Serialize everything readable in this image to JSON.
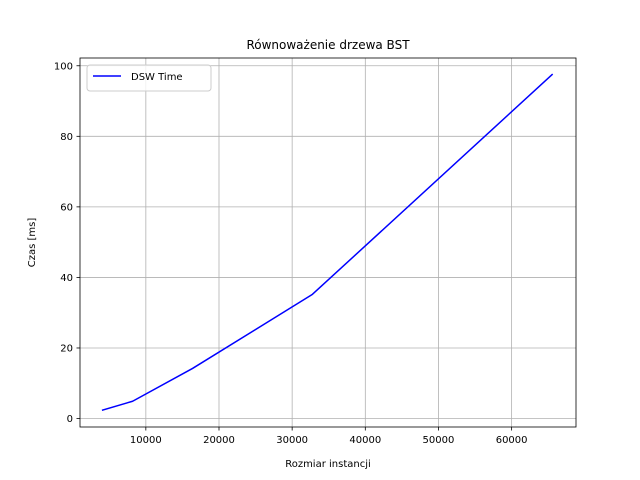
{
  "chart_data": {
    "type": "line",
    "title": "Równoważenie drzewa BST",
    "xlabel": "Rozmiar instancji",
    "ylabel": "Czas [ms]",
    "xlim": [
      1000,
      68800
    ],
    "ylim": [
      -2.4,
      102.2
    ],
    "xticks": [
      10000,
      20000,
      30000,
      40000,
      50000,
      60000
    ],
    "yticks": [
      0,
      20,
      40,
      60,
      80,
      100
    ],
    "grid": true,
    "legend_position": "upper-left",
    "series": [
      {
        "name": "DSW Time",
        "color": "#0000ff",
        "x": [
          4096,
          8192,
          16384,
          32768,
          65536
        ],
        "y": [
          2.4,
          4.9,
          14.2,
          35.2,
          97.5
        ]
      }
    ]
  }
}
